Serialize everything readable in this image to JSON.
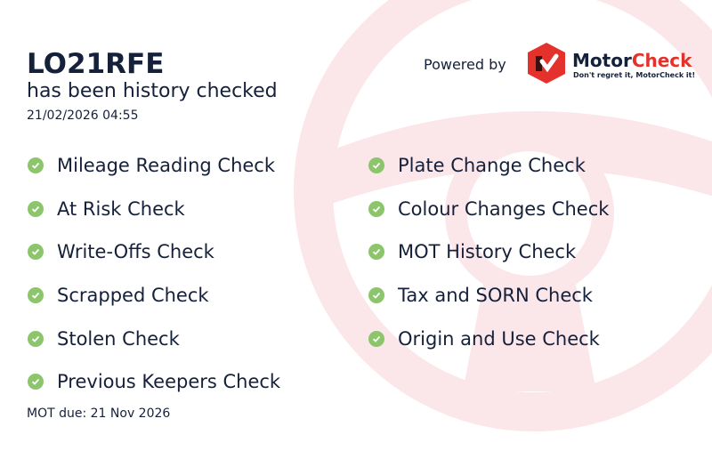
{
  "vehicle": {
    "plate": "LO21RFE",
    "subtitle": "has been history checked",
    "timestamp": "21/02/2026 04:55"
  },
  "branding": {
    "powered_by": "Powered by",
    "brand_part1": "Motor",
    "brand_part2": "Check",
    "tagline": "Don't regret it, MotorCheck it!",
    "accent": "#e5312b"
  },
  "checks_left": [
    "Mileage Reading Check",
    "At Risk Check",
    "Write-Offs Check",
    "Scrapped Check",
    "Stolen Check",
    "Previous Keepers Check"
  ],
  "checks_right": [
    "Plate Change Check",
    "Colour Changes Check",
    "MOT History Check",
    "Tax and SORN Check",
    "Origin and Use Check"
  ],
  "check_icon": "check-circle-icon",
  "check_color": "#8dc56c",
  "mot_due": "MOT due: 21 Nov 2026"
}
